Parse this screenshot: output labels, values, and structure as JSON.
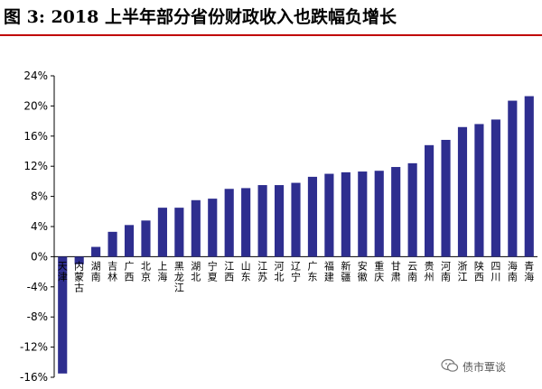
{
  "title": "图 3:  2018 上半年部分省份财政收入也跌幅负增长",
  "watermark": "债市覃谈",
  "colors": {
    "bar": "#2e2e8f",
    "title_rule": "#c00000"
  },
  "chart_data": {
    "type": "bar",
    "categories": [
      "天津",
      "内蒙古",
      "湖南",
      "吉林",
      "广西",
      "北京",
      "上海",
      "黑龙江",
      "湖北",
      "宁夏",
      "江西",
      "山东",
      "江苏",
      "河北",
      "辽宁",
      "广东",
      "福建",
      "新疆",
      "安徽",
      "重庆",
      "甘肃",
      "云南",
      "贵州",
      "河南",
      "浙江",
      "陕西",
      "四川",
      "海南",
      "青海"
    ],
    "values": [
      -15.5,
      -1.0,
      1.3,
      3.3,
      4.2,
      4.8,
      6.5,
      6.5,
      7.5,
      7.7,
      9.0,
      9.1,
      9.5,
      9.5,
      9.8,
      10.6,
      11.0,
      11.2,
      11.3,
      11.4,
      11.9,
      12.4,
      14.8,
      15.5,
      17.2,
      17.6,
      18.2,
      20.7,
      21.3
    ],
    "ylim": [
      -16,
      24
    ],
    "yticks": [
      24,
      20,
      16,
      12,
      8,
      4,
      0,
      -4,
      -8,
      -12,
      -16
    ],
    "ytick_labels": [
      "24%",
      "20%",
      "16%",
      "12%",
      "8%",
      "4%",
      "0%",
      "-4%",
      "-8%",
      "-12%",
      "-16%"
    ],
    "grid": false
  }
}
